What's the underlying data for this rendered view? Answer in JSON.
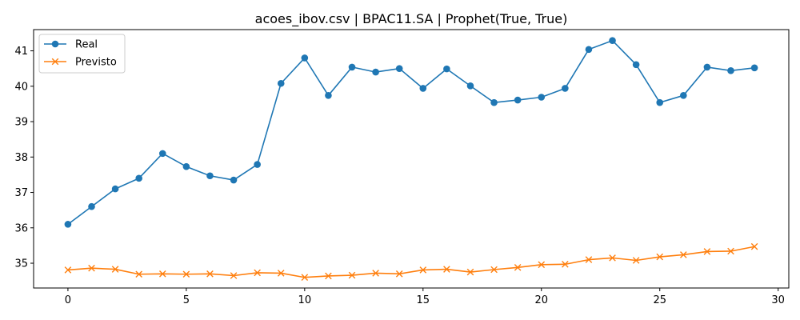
{
  "chart_data": {
    "type": "line",
    "title": "acoes_ibov.csv | BPAC11.SA | Prophet(True, True)",
    "xlabel": "",
    "ylabel": "",
    "xlim": [
      -1.45,
      30.45
    ],
    "ylim": [
      34.3,
      41.6
    ],
    "xticks": [
      0,
      5,
      10,
      15,
      20,
      25,
      30
    ],
    "yticks": [
      35,
      36,
      37,
      38,
      39,
      40,
      41
    ],
    "grid": false,
    "legend_position": "top-left",
    "x": [
      0,
      1,
      2,
      3,
      4,
      5,
      6,
      7,
      8,
      9,
      10,
      11,
      12,
      13,
      14,
      15,
      16,
      17,
      18,
      19,
      20,
      21,
      22,
      23,
      24,
      25,
      26,
      27,
      28,
      29
    ],
    "series": [
      {
        "name": "Real",
        "color": "#1f77b4",
        "marker": "circle",
        "values": [
          36.1,
          36.6,
          37.1,
          37.4,
          38.1,
          37.73,
          37.47,
          37.35,
          37.79,
          40.08,
          40.8,
          39.74,
          40.54,
          40.4,
          40.5,
          39.94,
          40.49,
          40.01,
          39.54,
          39.61,
          39.69,
          39.94,
          41.04,
          41.29,
          40.61,
          39.54,
          39.74,
          40.54,
          40.44,
          40.52
        ]
      },
      {
        "name": "Previsto",
        "color": "#ff7f0e",
        "marker": "x",
        "values": [
          34.81,
          34.86,
          34.83,
          34.69,
          34.7,
          34.69,
          34.7,
          34.65,
          34.73,
          34.72,
          34.6,
          34.64,
          34.66,
          34.72,
          34.7,
          34.81,
          34.83,
          34.75,
          34.82,
          34.88,
          34.96,
          34.97,
          35.1,
          35.15,
          35.08,
          35.18,
          35.24,
          35.33,
          35.34,
          35.47
        ]
      }
    ]
  }
}
